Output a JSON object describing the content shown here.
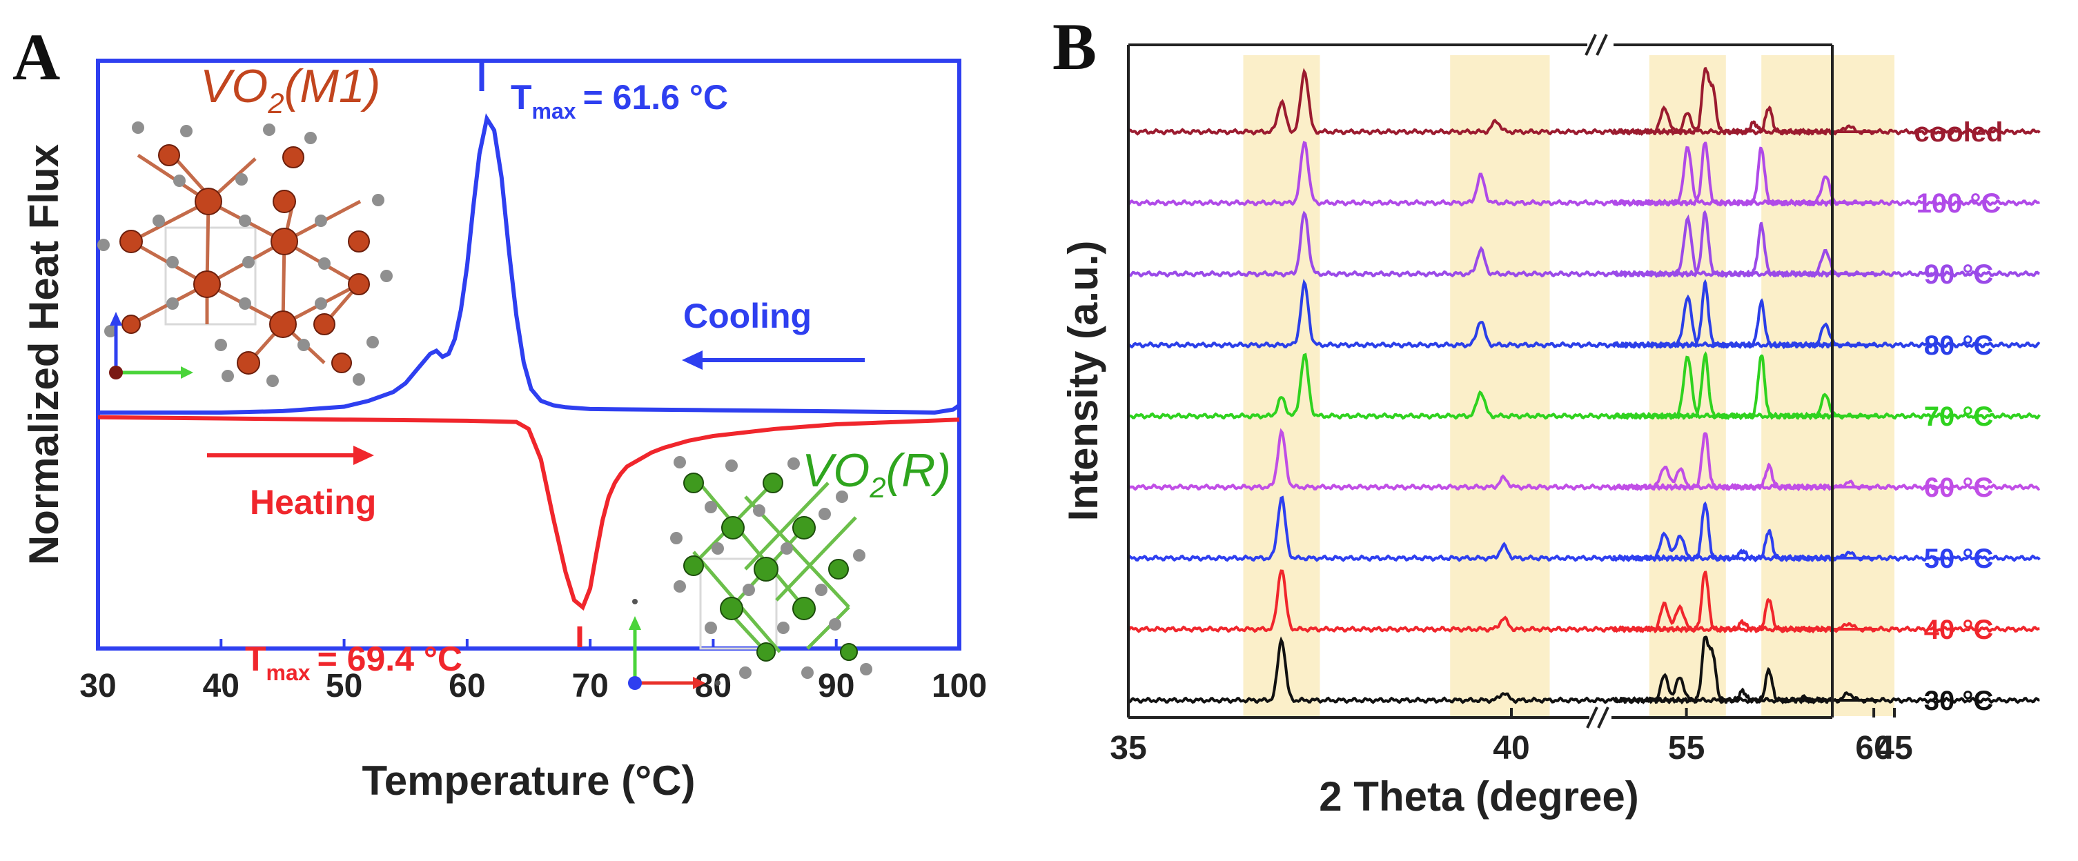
{
  "chart_data": [
    {
      "panel": "A",
      "type": "line",
      "xlabel": "Temperature (°C)",
      "ylabel": "Normalized Heat Flux",
      "xlim": [
        30,
        100
      ],
      "xticks": [
        30,
        40,
        50,
        60,
        70,
        80,
        90,
        100
      ],
      "series": [
        {
          "name": "Cooling",
          "color": "#2e3ff0",
          "x": [
            30,
            40,
            45,
            50,
            52,
            54,
            55,
            56,
            57,
            57.5,
            58,
            58.5,
            59,
            59.5,
            60,
            60.5,
            61,
            61.6,
            62.2,
            62.8,
            63.4,
            64,
            64.6,
            65.2,
            66,
            67,
            68,
            70,
            75,
            80,
            85,
            90,
            95,
            98,
            99.5,
            100
          ],
          "y": [
            0,
            0,
            0.005,
            0.02,
            0.04,
            0.07,
            0.1,
            0.15,
            0.2,
            0.21,
            0.19,
            0.2,
            0.25,
            0.35,
            0.5,
            0.7,
            0.88,
            1.0,
            0.96,
            0.8,
            0.55,
            0.33,
            0.17,
            0.08,
            0.04,
            0.025,
            0.018,
            0.012,
            0.01,
            0.008,
            0.006,
            0.004,
            0.002,
            0,
            0.01,
            0.025
          ]
        },
        {
          "name": "Heating",
          "color": "#f0262c",
          "x": [
            30,
            40,
            50,
            60,
            64,
            65,
            66,
            67,
            68,
            68.7,
            69.4,
            70,
            70.5,
            71,
            71.5,
            72,
            72.5,
            73,
            74,
            75,
            76,
            78,
            80,
            85,
            90,
            95,
            100
          ],
          "y": [
            -0.02,
            -0.025,
            -0.03,
            -0.035,
            -0.04,
            -0.07,
            -0.2,
            -0.45,
            -0.68,
            -0.8,
            -0.83,
            -0.75,
            -0.6,
            -0.46,
            -0.36,
            -0.3,
            -0.26,
            -0.23,
            -0.2,
            -0.17,
            -0.15,
            -0.12,
            -0.1,
            -0.07,
            -0.05,
            -0.04,
            -0.03
          ]
        }
      ],
      "annotations": {
        "cooling_peak_prefix": "T",
        "cooling_peak_sub": "max",
        "cooling_peak_value": "= 61.6 °C",
        "heating_peak_prefix": "T",
        "heating_peak_sub": "max",
        "heating_peak_value": "= 69.4 °C",
        "cooling_label": "Cooling",
        "heating_label": "Heating",
        "m1_prefix": "VO",
        "m1_sub": "2",
        "m1_suffix": "(M1)",
        "r_prefix": "VO",
        "r_sub": "2",
        "r_suffix": "(R)"
      }
    },
    {
      "panel": "B",
      "type": "line",
      "xlabel": "2 Theta (degree)",
      "ylabel": "Intensity (a.u.)",
      "axis_break": [
        47,
        53
      ],
      "xticks": [
        35,
        40,
        45,
        55,
        60
      ],
      "highlight_bands": [
        [
          36.5,
          37.5
        ],
        [
          39.2,
          40.5
        ],
        [
          41.8,
          42.8
        ],
        [
          43.8,
          45.0
        ],
        [
          54.6,
          55.4
        ],
        [
          57.0,
          58.2
        ]
      ],
      "series": [
        {
          "name": "30 °C",
          "color": "#111111",
          "peaks": [
            [
              37.0,
              1.0
            ],
            [
              39.9,
              0.12
            ],
            [
              42.0,
              0.4
            ],
            [
              42.2,
              0.38
            ],
            [
              43.8,
              0.05
            ],
            [
              44.4,
              0.12
            ],
            [
              55.5,
              1.0
            ],
            [
              55.7,
              0.75
            ],
            [
              56.5,
              0.15
            ],
            [
              57.2,
              0.5
            ]
          ]
        },
        {
          "name": "40 °C",
          "color": "#f0262c",
          "peaks": [
            [
              37.0,
              1.0
            ],
            [
              39.9,
              0.18
            ],
            [
              42.0,
              0.42
            ],
            [
              42.2,
              0.38
            ],
            [
              44.4,
              0.1
            ],
            [
              55.5,
              0.95
            ],
            [
              56.5,
              0.12
            ],
            [
              57.2,
              0.5
            ]
          ]
        },
        {
          "name": "50 °C",
          "color": "#2e3ff0",
          "peaks": [
            [
              37.0,
              1.0
            ],
            [
              39.9,
              0.2
            ],
            [
              42.0,
              0.42
            ],
            [
              42.2,
              0.38
            ],
            [
              44.4,
              0.1
            ],
            [
              55.5,
              0.9
            ],
            [
              56.5,
              0.12
            ],
            [
              57.2,
              0.45
            ]
          ]
        },
        {
          "name": "60 °C",
          "color": "#c04ee6",
          "peaks": [
            [
              37.0,
              0.9
            ],
            [
              39.9,
              0.15
            ],
            [
              42.0,
              0.35
            ],
            [
              42.2,
              0.3
            ],
            [
              44.4,
              0.08
            ],
            [
              55.5,
              0.9
            ],
            [
              57.2,
              0.35
            ]
          ]
        },
        {
          "name": "70 °C",
          "color": "#2fd21f",
          "peaks": [
            [
              37.0,
              0.3
            ],
            [
              37.3,
              1.0
            ],
            [
              39.6,
              0.4
            ],
            [
              42.3,
              1.0
            ],
            [
              44.1,
              0.35
            ],
            [
              55.5,
              1.0
            ],
            [
              57.0,
              1.0
            ]
          ]
        },
        {
          "name": "80 °C",
          "color": "#2b3fe8",
          "peaks": [
            [
              37.3,
              1.0
            ],
            [
              39.6,
              0.4
            ],
            [
              42.3,
              0.8
            ],
            [
              44.1,
              0.35
            ],
            [
              55.5,
              1.0
            ],
            [
              57.0,
              0.7
            ]
          ]
        },
        {
          "name": "90 °C",
          "color": "#9a4ae8",
          "peaks": [
            [
              37.3,
              1.0
            ],
            [
              39.6,
              0.4
            ],
            [
              42.3,
              0.9
            ],
            [
              44.1,
              0.4
            ],
            [
              55.5,
              1.0
            ],
            [
              57.0,
              0.8
            ]
          ]
        },
        {
          "name": "100 °C",
          "color": "#b04ae8",
          "peaks": [
            [
              37.3,
              1.0
            ],
            [
              39.6,
              0.45
            ],
            [
              42.3,
              0.9
            ],
            [
              44.1,
              0.45
            ],
            [
              55.5,
              1.0
            ],
            [
              57.0,
              0.9
            ]
          ]
        },
        {
          "name": "cooled",
          "color": "#9b1b2f",
          "peaks": [
            [
              37.0,
              0.5
            ],
            [
              37.3,
              1.0
            ],
            [
              39.8,
              0.18
            ],
            [
              42.0,
              0.4
            ],
            [
              42.3,
              0.3
            ],
            [
              44.4,
              0.1
            ],
            [
              55.5,
              1.0
            ],
            [
              55.7,
              0.7
            ],
            [
              56.8,
              0.15
            ],
            [
              57.2,
              0.4
            ]
          ]
        }
      ]
    }
  ],
  "panel_labels": {
    "a": "A",
    "b": "B"
  },
  "colors": {
    "m1_atom": "#c2451e",
    "r_atom": "#3f9a1e",
    "o_atom": "#8f8f8f",
    "band": "#fbefc9"
  }
}
